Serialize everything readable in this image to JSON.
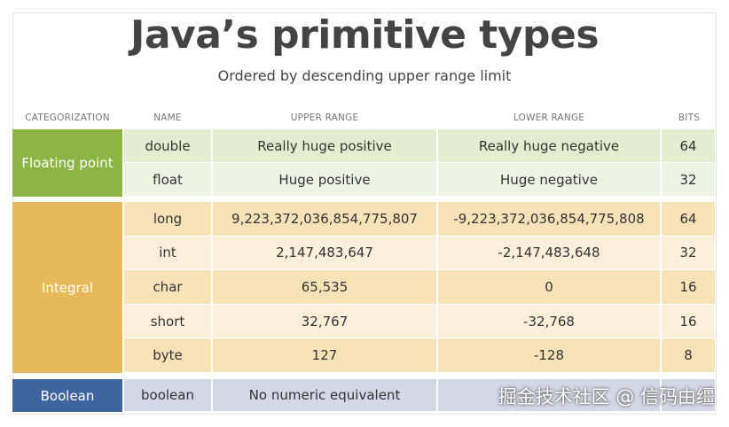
{
  "chart_data": {
    "type": "table",
    "title": "Java’s primitive types",
    "subtitle": "Ordered by descending upper range limit",
    "columns": [
      "CATEGORIZATION",
      "NAME",
      "UPPER RANGE",
      "LOWER RANGE",
      "BITS"
    ],
    "groups": [
      {
        "category": "Floating point",
        "color": "#8db545",
        "rows": [
          {
            "name": "double",
            "upper": "Really huge positive",
            "lower": "Really huge negative",
            "bits": "64"
          },
          {
            "name": "float",
            "upper": "Huge positive",
            "lower": "Huge negative",
            "bits": "32"
          }
        ]
      },
      {
        "category": "Integral",
        "color": "#e8b95a",
        "rows": [
          {
            "name": "long",
            "upper": "9,223,372,036,854,775,807",
            "lower": "-9,223,372,036,854,775,808",
            "bits": "64"
          },
          {
            "name": "int",
            "upper": "2,147,483,647",
            "lower": "-2,147,483,648",
            "bits": "32"
          },
          {
            "name": "char",
            "upper": "65,535",
            "lower": "0",
            "bits": "16"
          },
          {
            "name": "short",
            "upper": "32,767",
            "lower": "-32,768",
            "bits": "16"
          },
          {
            "name": "byte",
            "upper": "127",
            "lower": "-128",
            "bits": "8"
          }
        ]
      },
      {
        "category": "Boolean",
        "color": "#3e65a0",
        "rows": [
          {
            "name": "boolean",
            "upper": "No numeric equivalent",
            "lower": "",
            "bits": ""
          }
        ]
      }
    ]
  },
  "watermark": "掘金技术社区 @ 信码由缰"
}
